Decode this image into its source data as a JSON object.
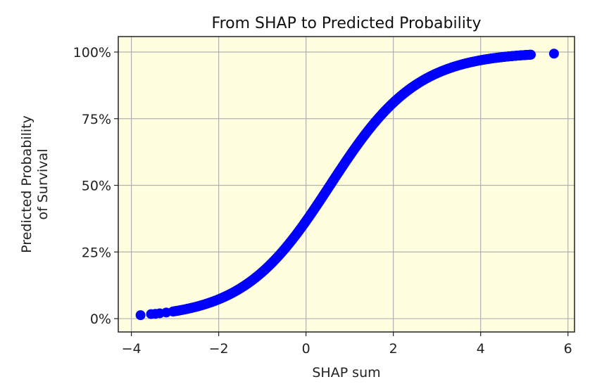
{
  "chart_data": {
    "type": "scatter",
    "title": "From SHAP to Predicted Probability",
    "xlabel": "SHAP sum",
    "ylabel": [
      "Predicted Probability",
      "of Survival"
    ],
    "xlim": [
      -4.3,
      6.15
    ],
    "ylim": [
      -0.05,
      1.058
    ],
    "xticks": [
      -4,
      -2,
      0,
      2,
      4,
      6
    ],
    "xtick_labels": [
      "−4",
      "−2",
      "0",
      "2",
      "4",
      "6"
    ],
    "yticks": [
      0,
      0.25,
      0.5,
      0.75,
      1.0
    ],
    "ytick_labels": [
      "0%",
      "25%",
      "50%",
      "75%",
      "100%"
    ],
    "grid": true,
    "legend": null,
    "background_color": "#ffffe0",
    "marker_color": "#0000ff",
    "curve": "sigmoid(x - 0.55)",
    "series": [
      {
        "name": "predictions",
        "x_range_dense": [
          -3.05,
          5.15
        ],
        "isolated_points": [
          {
            "x": -3.79,
            "y": 0.013
          },
          {
            "x": -3.55,
            "y": 0.017
          },
          {
            "x": -3.45,
            "y": 0.018
          },
          {
            "x": -3.35,
            "y": 0.02
          },
          {
            "x": -3.2,
            "y": 0.023
          },
          {
            "x": 5.68,
            "y": 0.994
          }
        ]
      }
    ]
  }
}
